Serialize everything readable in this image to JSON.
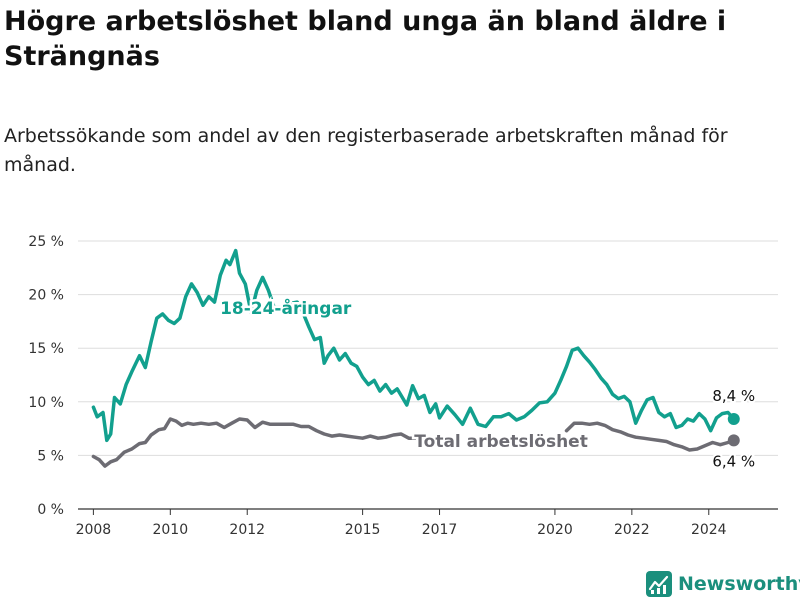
{
  "title": "Högre arbetslöshet bland unga än bland äldre i Strängnäs",
  "subtitle": "Arbetssökande som andel av den registerbaserade arbetskraften månad för månad.",
  "brand": {
    "name": "Newsworthy",
    "icon": "newsworthy-logo-icon",
    "color": "#1b8f7d"
  },
  "chart_data": {
    "type": "line",
    "title": "Högre arbetslöshet bland unga än bland äldre i Strängnäs",
    "subtitle": "Arbetssökande som andel av den registerbaserade arbetskraften månad för månad.",
    "xlabel": "",
    "ylabel": "",
    "ylim": [
      0,
      25
    ],
    "xlim": [
      2007.6,
      2025.8
    ],
    "y_ticks": [
      0,
      5,
      10,
      15,
      20,
      25
    ],
    "y_tick_labels": [
      "0 %",
      "5 %",
      "10 %",
      "15 %",
      "20 %",
      "25 %"
    ],
    "x_ticks": [
      2008,
      2010,
      2012,
      2015,
      2017,
      2020,
      2022,
      2024
    ],
    "x_tick_labels": [
      "2008",
      "2010",
      "2012",
      "2015",
      "2017",
      "2020",
      "2022",
      "2024"
    ],
    "grid": true,
    "legend": "inline labels",
    "series": [
      {
        "name": "18-24-åringar",
        "color": "#12a08e",
        "end_label": "8,4 %",
        "points": [
          [
            2008.0,
            9.5
          ],
          [
            2008.1,
            8.6
          ],
          [
            2008.25,
            9.0
          ],
          [
            2008.35,
            6.4
          ],
          [
            2008.45,
            7.0
          ],
          [
            2008.55,
            10.4
          ],
          [
            2008.7,
            9.8
          ],
          [
            2008.85,
            11.6
          ],
          [
            2009.0,
            12.8
          ],
          [
            2009.2,
            14.3
          ],
          [
            2009.35,
            13.2
          ],
          [
            2009.5,
            15.6
          ],
          [
            2009.65,
            17.8
          ],
          [
            2009.8,
            18.2
          ],
          [
            2009.95,
            17.6
          ],
          [
            2010.1,
            17.3
          ],
          [
            2010.25,
            17.8
          ],
          [
            2010.4,
            19.8
          ],
          [
            2010.55,
            21.0
          ],
          [
            2010.7,
            20.2
          ],
          [
            2010.85,
            19.0
          ],
          [
            2011.0,
            19.8
          ],
          [
            2011.15,
            19.3
          ],
          [
            2011.3,
            21.8
          ],
          [
            2011.45,
            23.2
          ],
          [
            2011.55,
            22.8
          ],
          [
            2011.7,
            24.1
          ],
          [
            2011.8,
            22.0
          ],
          [
            2011.95,
            21.0
          ],
          [
            2012.1,
            18.3
          ],
          [
            2012.25,
            20.4
          ],
          [
            2012.4,
            21.6
          ],
          [
            2012.55,
            20.4
          ],
          [
            2012.7,
            18.8
          ],
          [
            2012.85,
            18.8
          ],
          [
            2013.0,
            18.5
          ],
          [
            2013.15,
            19.2
          ],
          [
            2013.3,
            19.3
          ],
          [
            2013.45,
            18.3
          ],
          [
            2013.6,
            17.0
          ],
          [
            2013.75,
            15.8
          ],
          [
            2013.9,
            16.0
          ],
          [
            2014.0,
            13.6
          ],
          [
            2014.1,
            14.3
          ],
          [
            2014.25,
            15.0
          ],
          [
            2014.4,
            13.9
          ],
          [
            2014.55,
            14.5
          ],
          [
            2014.7,
            13.6
          ],
          [
            2014.85,
            13.3
          ],
          [
            2015.0,
            12.3
          ],
          [
            2015.15,
            11.6
          ],
          [
            2015.3,
            12.0
          ],
          [
            2015.45,
            11.0
          ],
          [
            2015.6,
            11.6
          ],
          [
            2015.75,
            10.8
          ],
          [
            2015.9,
            11.2
          ],
          [
            2016.0,
            10.6
          ],
          [
            2016.15,
            9.7
          ],
          [
            2016.3,
            11.5
          ],
          [
            2016.45,
            10.3
          ],
          [
            2016.6,
            10.6
          ],
          [
            2016.75,
            9.0
          ],
          [
            2016.9,
            9.8
          ],
          [
            2017.0,
            8.5
          ],
          [
            2017.2,
            9.6
          ],
          [
            2017.4,
            8.8
          ],
          [
            2017.6,
            7.9
          ],
          [
            2017.8,
            9.4
          ],
          [
            2018.0,
            7.9
          ],
          [
            2018.2,
            7.7
          ],
          [
            2018.4,
            8.6
          ],
          [
            2018.6,
            8.6
          ],
          [
            2018.8,
            8.9
          ],
          [
            2019.0,
            8.3
          ],
          [
            2019.2,
            8.6
          ],
          [
            2019.4,
            9.2
          ],
          [
            2019.6,
            9.9
          ],
          [
            2019.8,
            10.0
          ],
          [
            2020.0,
            10.8
          ],
          [
            2020.15,
            12.0
          ],
          [
            2020.3,
            13.3
          ],
          [
            2020.45,
            14.8
          ],
          [
            2020.6,
            15.0
          ],
          [
            2020.75,
            14.3
          ],
          [
            2020.9,
            13.7
          ],
          [
            2021.05,
            13.0
          ],
          [
            2021.2,
            12.2
          ],
          [
            2021.35,
            11.6
          ],
          [
            2021.5,
            10.7
          ],
          [
            2021.65,
            10.3
          ],
          [
            2021.8,
            10.5
          ],
          [
            2021.95,
            10.0
          ],
          [
            2022.1,
            8.0
          ],
          [
            2022.25,
            9.2
          ],
          [
            2022.4,
            10.2
          ],
          [
            2022.55,
            10.4
          ],
          [
            2022.7,
            9.0
          ],
          [
            2022.85,
            8.6
          ],
          [
            2023.0,
            8.9
          ],
          [
            2023.15,
            7.6
          ],
          [
            2023.3,
            7.8
          ],
          [
            2023.45,
            8.4
          ],
          [
            2023.6,
            8.2
          ],
          [
            2023.75,
            8.9
          ],
          [
            2023.9,
            8.4
          ],
          [
            2024.05,
            7.3
          ],
          [
            2024.2,
            8.5
          ],
          [
            2024.35,
            8.9
          ],
          [
            2024.5,
            9.0
          ],
          [
            2024.65,
            8.4
          ]
        ]
      },
      {
        "name": "Total arbetslöshet",
        "color": "#6d6c73",
        "end_label": "6,4 %",
        "points": [
          [
            2008.0,
            4.9
          ],
          [
            2008.15,
            4.6
          ],
          [
            2008.3,
            4.0
          ],
          [
            2008.45,
            4.4
          ],
          [
            2008.6,
            4.6
          ],
          [
            2008.8,
            5.3
          ],
          [
            2009.0,
            5.6
          ],
          [
            2009.2,
            6.1
          ],
          [
            2009.35,
            6.2
          ],
          [
            2009.5,
            6.9
          ],
          [
            2009.7,
            7.4
          ],
          [
            2009.85,
            7.5
          ],
          [
            2010.0,
            8.4
          ],
          [
            2010.15,
            8.2
          ],
          [
            2010.3,
            7.8
          ],
          [
            2010.45,
            8.0
          ],
          [
            2010.6,
            7.9
          ],
          [
            2010.8,
            8.0
          ],
          [
            2011.0,
            7.9
          ],
          [
            2011.2,
            8.0
          ],
          [
            2011.4,
            7.6
          ],
          [
            2011.6,
            8.0
          ],
          [
            2011.8,
            8.4
          ],
          [
            2012.0,
            8.3
          ],
          [
            2012.2,
            7.6
          ],
          [
            2012.4,
            8.1
          ],
          [
            2012.6,
            7.9
          ],
          [
            2012.8,
            7.9
          ],
          [
            2013.0,
            7.9
          ],
          [
            2013.2,
            7.9
          ],
          [
            2013.4,
            7.7
          ],
          [
            2013.6,
            7.7
          ],
          [
            2013.8,
            7.3
          ],
          [
            2014.0,
            7.0
          ],
          [
            2014.2,
            6.8
          ],
          [
            2014.4,
            6.9
          ],
          [
            2014.6,
            6.8
          ],
          [
            2014.8,
            6.7
          ],
          [
            2015.0,
            6.6
          ],
          [
            2015.2,
            6.8
          ],
          [
            2015.4,
            6.6
          ],
          [
            2015.6,
            6.7
          ],
          [
            2015.8,
            6.9
          ],
          [
            2016.0,
            7.0
          ],
          [
            2016.2,
            6.6
          ],
          [
            2016.4,
            6.6
          ],
          [
            2020.3,
            7.3
          ],
          [
            2020.5,
            8.0
          ],
          [
            2020.7,
            8.0
          ],
          [
            2020.9,
            7.9
          ],
          [
            2021.1,
            8.0
          ],
          [
            2021.3,
            7.8
          ],
          [
            2021.5,
            7.4
          ],
          [
            2021.7,
            7.2
          ],
          [
            2021.9,
            6.9
          ],
          [
            2022.1,
            6.7
          ],
          [
            2022.3,
            6.6
          ],
          [
            2022.5,
            6.5
          ],
          [
            2022.7,
            6.4
          ],
          [
            2022.9,
            6.3
          ],
          [
            2023.1,
            6.0
          ],
          [
            2023.3,
            5.8
          ],
          [
            2023.5,
            5.5
          ],
          [
            2023.7,
            5.6
          ],
          [
            2023.9,
            5.9
          ],
          [
            2024.1,
            6.2
          ],
          [
            2024.3,
            6.0
          ],
          [
            2024.5,
            6.2
          ],
          [
            2024.65,
            6.4
          ]
        ]
      }
    ]
  }
}
